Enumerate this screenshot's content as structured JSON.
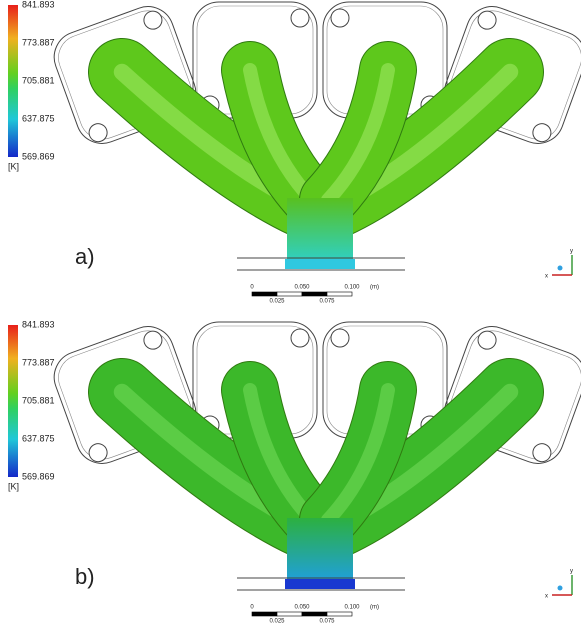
{
  "panels": [
    {
      "label": "a)",
      "colorbar": {
        "ticks": [
          "841.893",
          "773.887",
          "705.881",
          "637.875",
          "569.869"
        ],
        "unit": "[K]"
      },
      "scale_bar": {
        "top": [
          "0",
          "0.050",
          "0.100",
          "(m)"
        ],
        "bottom": [
          "0.025",
          "0.075"
        ]
      },
      "axes": {
        "x": "x",
        "y": "y"
      }
    },
    {
      "label": "b)",
      "colorbar": {
        "ticks": [
          "841.893",
          "773.887",
          "705.881",
          "637.875",
          "569.869"
        ],
        "unit": "[K]"
      },
      "scale_bar": {
        "top": [
          "0",
          "0.050",
          "0.100",
          "(m)"
        ],
        "bottom": [
          "0.025",
          "0.075"
        ]
      },
      "axes": {
        "x": "x",
        "y": "y"
      }
    }
  ]
}
